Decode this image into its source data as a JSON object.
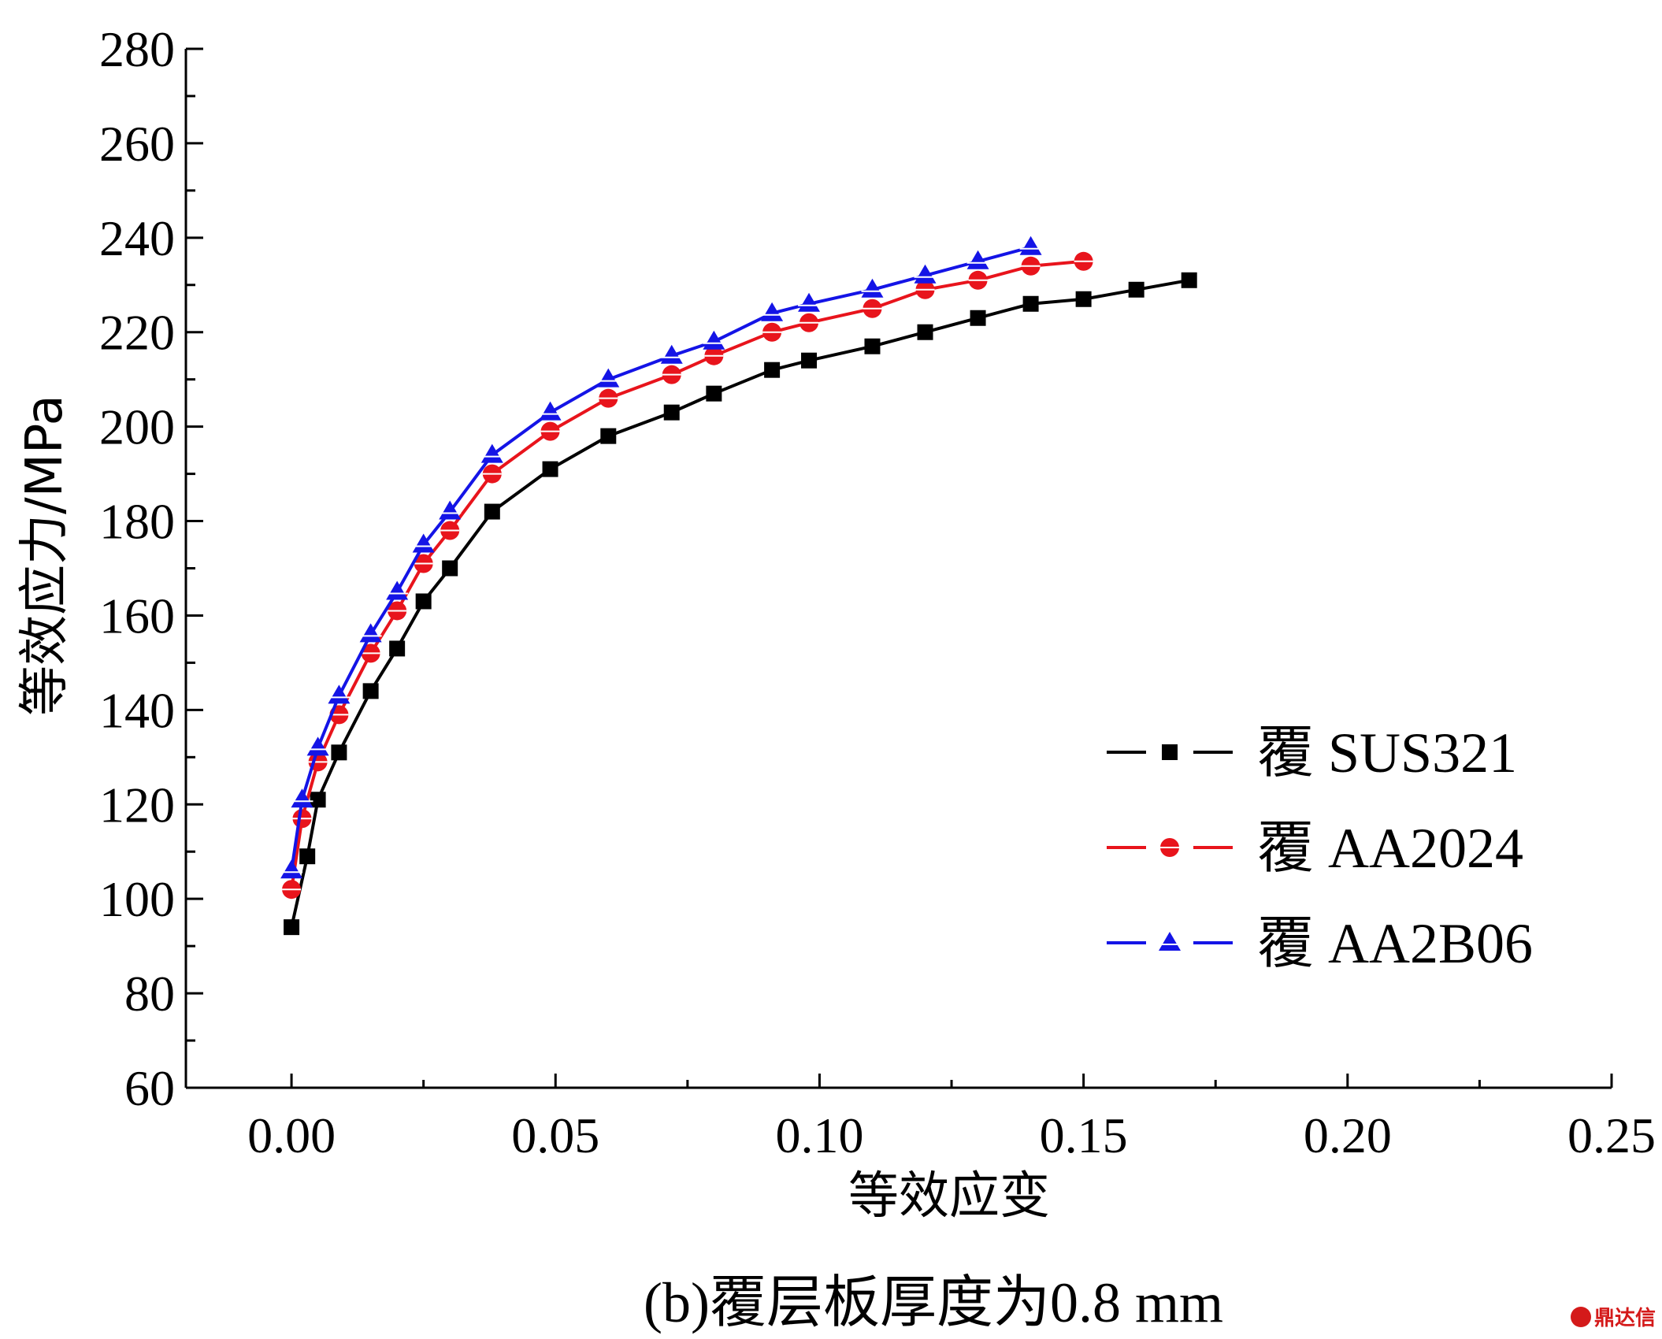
{
  "chart_data": {
    "type": "line",
    "title": "",
    "xlabel": "等效应变",
    "ylabel": "等效应力/MPa",
    "caption": "(b)覆层板厚度为0.8 mm",
    "xlim": [
      -0.02,
      0.25
    ],
    "ylim": [
      60,
      280
    ],
    "x_ticks": [
      0.0,
      0.05,
      0.1,
      0.15,
      0.2,
      0.25
    ],
    "x_tick_labels": [
      "0.00",
      "0.05",
      "0.10",
      "0.15",
      "0.20",
      "0.25"
    ],
    "y_ticks": [
      60,
      80,
      100,
      120,
      140,
      160,
      180,
      200,
      220,
      240,
      260,
      280
    ],
    "y_tick_labels": [
      "60",
      "80",
      "100",
      "120",
      "140",
      "160",
      "180",
      "200",
      "220",
      "240",
      "260",
      "280"
    ],
    "grid": false,
    "legend_position": "right",
    "series": [
      {
        "name": "覆 SUS321",
        "color": "#000000",
        "marker": "square",
        "x": [
          0.0,
          0.003,
          0.005,
          0.009,
          0.015,
          0.02,
          0.025,
          0.03,
          0.038,
          0.049,
          0.06,
          0.072,
          0.08,
          0.091,
          0.098,
          0.11,
          0.12,
          0.13,
          0.14,
          0.15,
          0.16,
          0.17
        ],
        "y": [
          94,
          109,
          121,
          131,
          144,
          153,
          163,
          170,
          182,
          191,
          198,
          203,
          207,
          212,
          214,
          217,
          220,
          223,
          226,
          227,
          229,
          231
        ]
      },
      {
        "name": "覆 AA2024",
        "color": "#e8141c",
        "marker": "circle",
        "x": [
          0.0,
          0.002,
          0.005,
          0.009,
          0.015,
          0.02,
          0.025,
          0.03,
          0.038,
          0.049,
          0.06,
          0.072,
          0.08,
          0.091,
          0.098,
          0.11,
          0.12,
          0.13,
          0.14,
          0.15
        ],
        "y": [
          102,
          117,
          129,
          139,
          152,
          161,
          171,
          178,
          190,
          199,
          206,
          211,
          215,
          220,
          222,
          225,
          229,
          231,
          234,
          235
        ]
      },
      {
        "name": "覆 AA2B06",
        "color": "#1414e6",
        "marker": "triangle",
        "x": [
          0.0,
          0.002,
          0.005,
          0.009,
          0.015,
          0.02,
          0.025,
          0.03,
          0.038,
          0.049,
          0.06,
          0.072,
          0.08,
          0.091,
          0.098,
          0.11,
          0.12,
          0.13,
          0.14
        ],
        "y": [
          106,
          121,
          132,
          143,
          156,
          165,
          175,
          182,
          194,
          203,
          210,
          215,
          218,
          224,
          226,
          229,
          232,
          235,
          238
        ]
      }
    ]
  },
  "watermark": "鼎达信"
}
